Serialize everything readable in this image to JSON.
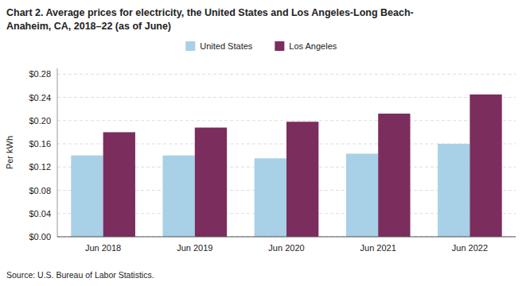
{
  "chart_data": {
    "type": "bar",
    "title": "Chart 2. Average prices for electricity, the United States and Los Angeles-Long Beach-\nAnaheim, CA, 2018–22 (as of June)",
    "y_label": "Per kWh",
    "source": "Source: U.S. Bureau of Labor Statistics.",
    "categories": [
      "Jun 2018",
      "Jun 2019",
      "Jun 2020",
      "Jun 2021",
      "Jun 2022"
    ],
    "series": [
      {
        "name": "United States",
        "color": "#a8d0e6",
        "values": [
          0.14,
          0.14,
          0.135,
          0.143,
          0.16
        ]
      },
      {
        "name": "Los Angeles",
        "color": "#7b2d5e",
        "values": [
          0.18,
          0.188,
          0.198,
          0.212,
          0.245
        ]
      }
    ],
    "ylim": [
      0,
      0.29
    ],
    "yticks": [
      {
        "value": 0.0,
        "label": "$0.00"
      },
      {
        "value": 0.04,
        "label": "$0.04"
      },
      {
        "value": 0.08,
        "label": "$0.08"
      },
      {
        "value": 0.12,
        "label": "$0.12"
      },
      {
        "value": 0.16,
        "label": "$0.16"
      },
      {
        "value": 0.2,
        "label": "$0.20"
      },
      {
        "value": 0.24,
        "label": "$0.24"
      },
      {
        "value": 0.28,
        "label": "$0.28"
      }
    ],
    "grid": true,
    "legend": "top"
  }
}
